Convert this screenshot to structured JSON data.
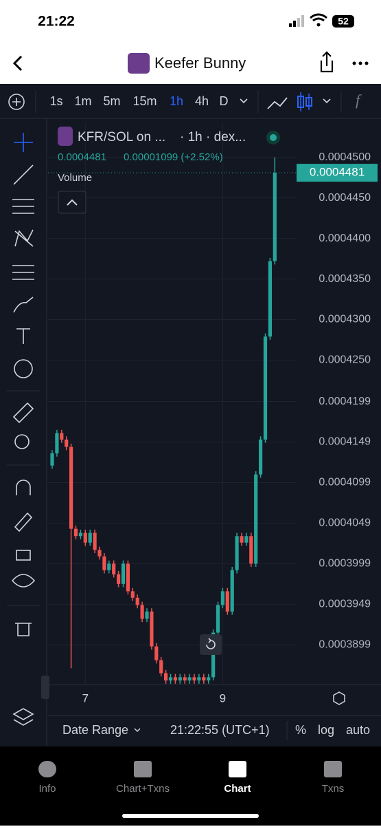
{
  "status_bar": {
    "time": "21:22",
    "battery": "52"
  },
  "header": {
    "title": "Keefer Bunny"
  },
  "toolbar": {
    "intervals": [
      "1s",
      "1m",
      "5m",
      "15m",
      "1h",
      "4h",
      "D"
    ],
    "active_interval": 4
  },
  "legend": {
    "symbol": "KFR/SOL on ...",
    "source": "· 1h · dex...",
    "price": "0.0004481",
    "change": "0.00001099 (+2.52%)",
    "study": "Volume"
  },
  "chart_data": {
    "type": "candlestick",
    "categories": [
      null,
      null,
      null,
      null,
      null,
      null,
      null,
      "7",
      null,
      null,
      null,
      null,
      null,
      null,
      null,
      null,
      null,
      null,
      null,
      null,
      null,
      null,
      null,
      null,
      null,
      null,
      null,
      null,
      null,
      null,
      null,
      null,
      null,
      null,
      null,
      null,
      "9",
      null,
      null,
      null,
      null,
      null,
      null,
      null,
      null,
      null,
      null,
      null
    ],
    "open": [
      0.000412,
      0.0004135,
      0.000416,
      0.0004152,
      0.0004143,
      0.0004042,
      0.0004033,
      0.0004037,
      0.0004025,
      0.0004037,
      0.0004016,
      0.0004008,
      0.0003991,
      0.0003999,
      0.0003986,
      0.0003974,
      0.0003999,
      0.0003965,
      0.0003957,
      0.0003948,
      0.0003931,
      0.000394,
      0.0003897,
      0.000388,
      0.0003864,
      0.0003855,
      0.0003859,
      0.0003855,
      0.0003859,
      0.0003855,
      0.0003859,
      0.0003855,
      0.0003859,
      0.0003855,
      0.0003859,
      0.0003914,
      0.0003948,
      0.0003965,
      0.000394,
      0.0003991,
      0.0004033,
      0.0004025,
      0.0004033,
      0.0003999,
      0.0004109,
      0.0004152,
      0.0004279,
      0.0004372
    ],
    "high": [
      0.0004139,
      0.0004164,
      0.0004164,
      0.0004156,
      0.0004147,
      0.0004046,
      0.0004041,
      0.0004041,
      0.0004041,
      0.0004041,
      0.000402,
      0.0004012,
      0.0004003,
      0.0004003,
      0.000399,
      0.0004003,
      0.0004003,
      0.0003969,
      0.0003961,
      0.0003952,
      0.0003944,
      0.0003944,
      0.0003901,
      0.0003884,
      0.0003868,
      0.0003863,
      0.0003863,
      0.0003863,
      0.0003863,
      0.0003863,
      0.0003863,
      0.0003863,
      0.0003863,
      0.0003863,
      0.0003918,
      0.0003952,
      0.0003969,
      0.0003969,
      0.0003995,
      0.0004037,
      0.0004037,
      0.0004037,
      0.0004037,
      0.0004113,
      0.0004156,
      0.0004283,
      0.0004376,
      0.00045
    ],
    "low": [
      0.0004116,
      0.0004131,
      0.0004148,
      0.0004139,
      0.000387,
      0.0004029,
      0.0004029,
      0.0004021,
      0.0004021,
      0.0004012,
      0.0004004,
      0.0003987,
      0.0003987,
      0.0003982,
      0.000397,
      0.000397,
      0.0003961,
      0.0003953,
      0.0003944,
      0.0003927,
      0.0003927,
      0.0003893,
      0.0003876,
      0.000386,
      0.0003851,
      0.0003851,
      0.0003851,
      0.0003851,
      0.0003851,
      0.0003851,
      0.0003851,
      0.0003851,
      0.0003851,
      0.0003851,
      0.0003855,
      0.000391,
      0.0003944,
      0.0003936,
      0.0003936,
      0.0003987,
      0.0004021,
      0.0004021,
      0.0003995,
      0.0003995,
      0.0004105,
      0.0004148,
      0.0004275,
      0.0004368
    ],
    "close": [
      0.0004135,
      0.000416,
      0.0004152,
      0.0004143,
      0.0004042,
      0.0004033,
      0.0004037,
      0.0004025,
      0.0004037,
      0.0004016,
      0.0004008,
      0.0003991,
      0.0003999,
      0.0003986,
      0.0003974,
      0.0003999,
      0.0003965,
      0.0003957,
      0.0003948,
      0.0003931,
      0.000394,
      0.0003897,
      0.000388,
      0.0003864,
      0.0003855,
      0.0003859,
      0.0003855,
      0.0003859,
      0.0003855,
      0.0003859,
      0.0003855,
      0.0003859,
      0.0003855,
      0.0003859,
      0.0003914,
      0.0003948,
      0.0003965,
      0.000394,
      0.0003991,
      0.0004033,
      0.0004025,
      0.0004033,
      0.0003999,
      0.0004109,
      0.0004152,
      0.0004279,
      0.0004372,
      0.0004481
    ],
    "up_color": "#26a69a",
    "down_color": "#ef5350",
    "ylim": [
      0.000385,
      0.0004543
    ],
    "yticks": [
      {
        "value": 0.00045,
        "label": "0.0004500"
      },
      {
        "value": 0.000445,
        "label": "0.0004450"
      },
      {
        "value": 0.00044,
        "label": "0.0004400"
      },
      {
        "value": 0.000435,
        "label": "0.0004350"
      },
      {
        "value": 0.00043,
        "label": "0.0004300"
      },
      {
        "value": 0.000425,
        "label": "0.0004250"
      },
      {
        "value": 0.0004199,
        "label": "0.0004199"
      },
      {
        "value": 0.0004149,
        "label": "0.0004149"
      },
      {
        "value": 0.0004099,
        "label": "0.0004099"
      },
      {
        "value": 0.0004049,
        "label": "0.0004049"
      },
      {
        "value": 0.0003999,
        "label": "0.0003999"
      },
      {
        "value": 0.0003949,
        "label": "0.0003949"
      },
      {
        "value": 0.0003899,
        "label": "0.0003899"
      }
    ],
    "last_price": {
      "value": 0.0004481,
      "label": "0.0004481"
    },
    "grid": true
  },
  "footer": {
    "date_range": "Date Range",
    "time": "21:22:55 (UTC+1)",
    "percent": "%",
    "log": "log",
    "auto": "auto"
  },
  "tabs": [
    "Info",
    "Chart+Txns",
    "Chart",
    "Txns"
  ],
  "active_tab": 2
}
